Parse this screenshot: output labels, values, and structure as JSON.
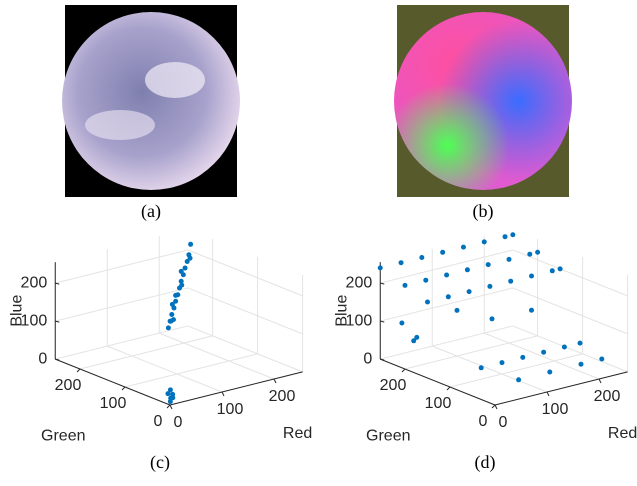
{
  "images": [
    {
      "caption": "(a)"
    },
    {
      "caption": "(b)"
    }
  ],
  "chart_data": [
    {
      "type": "scatter3d",
      "caption": "(c)",
      "x_label": "Red",
      "y_label": "Green",
      "z_label": "Blue",
      "color": "#0072bd",
      "xlim": [
        0,
        255
      ],
      "ylim": [
        0,
        255
      ],
      "zlim": [
        0,
        255
      ],
      "xticks": [
        0,
        100,
        200
      ],
      "yticks": [
        0,
        100,
        200
      ],
      "zticks": [
        0,
        100,
        200
      ],
      "grid": true,
      "x": [
        170,
        175,
        180,
        185,
        190,
        195,
        200,
        205,
        210,
        215,
        220,
        225,
        230,
        178,
        188,
        200,
        212,
        222,
        182,
        196,
        5,
        8,
        3,
        10,
        6,
        12
      ],
      "y": [
        200,
        202,
        204,
        205,
        207,
        208,
        210,
        212,
        213,
        215,
        216,
        218,
        220,
        198,
        212,
        205,
        220,
        212,
        208,
        214,
        5,
        3,
        8,
        10,
        6,
        8
      ],
      "z": [
        50,
        65,
        80,
        95,
        110,
        125,
        140,
        155,
        170,
        185,
        200,
        215,
        240,
        70,
        100,
        150,
        175,
        210,
        60,
        120,
        5,
        15,
        25,
        10,
        35,
        20
      ]
    },
    {
      "type": "scatter3d",
      "caption": "(d)",
      "x_label": "Red",
      "y_label": "Green",
      "z_label": "Blue",
      "color": "#0072bd",
      "xlim": [
        0,
        255
      ],
      "ylim": [
        0,
        255
      ],
      "zlim": [
        0,
        255
      ],
      "xticks": [
        0,
        100,
        200
      ],
      "yticks": [
        0,
        100,
        200
      ],
      "zticks": [
        0,
        100,
        200
      ],
      "grid": true,
      "x": [
        0,
        40,
        80,
        120,
        160,
        200,
        240,
        255,
        0,
        40,
        80,
        120,
        160,
        200,
        240,
        255,
        0,
        40,
        80,
        120,
        160,
        200,
        240,
        255,
        60,
        100,
        140,
        180,
        220,
        250,
        80,
        140,
        200,
        240,
        20,
        40,
        100,
        150,
        60,
        200
      ],
      "y": [
        255,
        255,
        255,
        255,
        255,
        255,
        255,
        255,
        200,
        200,
        200,
        200,
        200,
        200,
        200,
        200,
        150,
        150,
        150,
        150,
        150,
        150,
        150,
        150,
        100,
        100,
        100,
        100,
        100,
        100,
        40,
        40,
        40,
        40,
        230,
        220,
        200,
        180,
        250,
        150
      ],
      "z": [
        240,
        240,
        240,
        240,
        240,
        240,
        240,
        240,
        220,
        220,
        220,
        220,
        220,
        220,
        220,
        220,
        200,
        200,
        200,
        200,
        200,
        200,
        200,
        200,
        30,
        30,
        30,
        30,
        30,
        30,
        20,
        20,
        20,
        20,
        100,
        60,
        120,
        90,
        30,
        110
      ]
    }
  ]
}
